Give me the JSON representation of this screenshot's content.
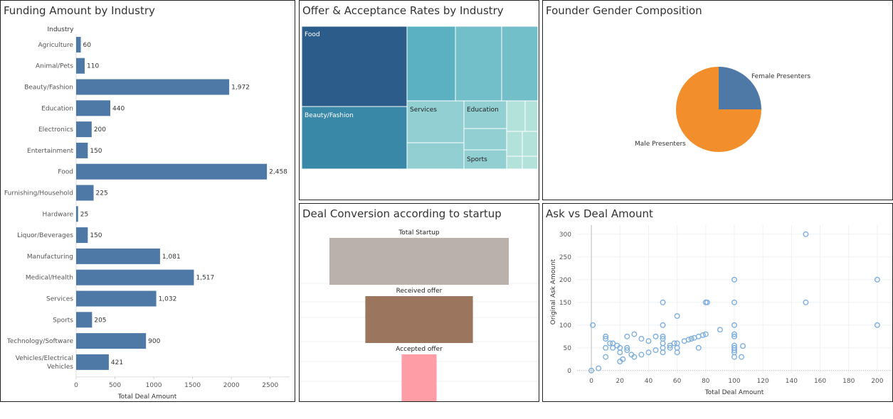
{
  "panels": {
    "funding_title": "Funding Amount by Industry",
    "offer_title": "Offer & Acceptance Rates by Industry",
    "gender_title": "Founder Gender Composition",
    "funnel_title": "Deal Conversion according to startup",
    "scatter_title": "Ask vs Deal Amount"
  },
  "colors": {
    "bar": "#4e79a7",
    "pie_female": "#4e79a7",
    "pie_male": "#f28e2b",
    "funnel": [
      "#bab0ac",
      "#9c755f",
      "#ff9da7"
    ],
    "scatter": "#7fb0dd",
    "treemap": [
      "#2c5d8a",
      "#3a88a8",
      "#5bb0c2",
      "#72bec9",
      "#91cfd2",
      "#b3e2da"
    ]
  },
  "chart_data": [
    {
      "id": "funding",
      "type": "bar",
      "orientation": "horizontal",
      "title": "Funding Amount by Industry",
      "row_header": "Industry",
      "xlabel": "Total Deal Amount",
      "ylabel": "",
      "xlim": [
        0,
        2750
      ],
      "xticks": [
        0,
        500,
        1000,
        1500,
        2000,
        2500
      ],
      "categories": [
        "Agriculture",
        "Animal/Pets",
        "Beauty/Fashion",
        "Education",
        "Electronics",
        "Entertainment",
        "Food",
        "Furnishing/Household",
        "Hardware",
        "Liquor/Beverages",
        "Manufacturing",
        "Medical/Health",
        "Services",
        "Sports",
        "Technology/Software",
        "Vehicles/Electrical Vehicles"
      ],
      "values": [
        60,
        110,
        1972,
        440,
        200,
        150,
        2458,
        225,
        25,
        150,
        1081,
        1517,
        1032,
        205,
        900,
        421
      ],
      "value_labels": [
        "60",
        "110",
        "1,972",
        "440",
        "200",
        "150",
        "2,458",
        "225",
        "25",
        "150",
        "1,081",
        "1,517",
        "1,032",
        "205",
        "900",
        "421"
      ]
    },
    {
      "id": "offer",
      "type": "treemap",
      "title": "Offer & Acceptance Rates by Industry",
      "labels": [
        "Food",
        "Beauty/Fashion",
        "Services",
        "Education",
        "Sports"
      ]
    },
    {
      "id": "gender",
      "type": "pie",
      "title": "Founder Gender Composition",
      "slices": [
        {
          "label": "Female Presenters",
          "value": 25
        },
        {
          "label": "Male Presenters",
          "value": 75
        }
      ]
    },
    {
      "id": "funnel",
      "type": "bar",
      "title": "Deal Conversion according to startup",
      "categories": [
        "Total Startup",
        "Received offer",
        "Accepted offer"
      ],
      "values": [
        100,
        60,
        19.5
      ]
    },
    {
      "id": "scatter",
      "type": "scatter",
      "title": "Ask vs Deal Amount",
      "xlabel": "Total Deal Amount",
      "ylabel": "Original Ask Amount",
      "xlim": [
        -10,
        210
      ],
      "ylim": [
        -5,
        320
      ],
      "xticks": [
        0,
        20,
        40,
        60,
        80,
        100,
        120,
        140,
        160,
        180,
        200
      ],
      "yticks": [
        0,
        50,
        100,
        150,
        200,
        250,
        300
      ],
      "points": [
        [
          0,
          0
        ],
        [
          5,
          5
        ],
        [
          1,
          100
        ],
        [
          10,
          30
        ],
        [
          10,
          50
        ],
        [
          10,
          70
        ],
        [
          10,
          75
        ],
        [
          13,
          60
        ],
        [
          15,
          50
        ],
        [
          15,
          60
        ],
        [
          18,
          55
        ],
        [
          20,
          20
        ],
        [
          20,
          40
        ],
        [
          20,
          50
        ],
        [
          22,
          25
        ],
        [
          25,
          45
        ],
        [
          25,
          50
        ],
        [
          25,
          75
        ],
        [
          28,
          35
        ],
        [
          30,
          30
        ],
        [
          30,
          80
        ],
        [
          35,
          35
        ],
        [
          35,
          70
        ],
        [
          40,
          40
        ],
        [
          40,
          65
        ],
        [
          45,
          45
        ],
        [
          45,
          75
        ],
        [
          50,
          40
        ],
        [
          50,
          50
        ],
        [
          50,
          60
        ],
        [
          50,
          70
        ],
        [
          50,
          75
        ],
        [
          50,
          100
        ],
        [
          50,
          150
        ],
        [
          55,
          50
        ],
        [
          55,
          55
        ],
        [
          58,
          60
        ],
        [
          60,
          40
        ],
        [
          60,
          50
        ],
        [
          60,
          60
        ],
        [
          60,
          120
        ],
        [
          65,
          65
        ],
        [
          68,
          68
        ],
        [
          70,
          70
        ],
        [
          72,
          72
        ],
        [
          75,
          75
        ],
        [
          75,
          50
        ],
        [
          78,
          78
        ],
        [
          80,
          80
        ],
        [
          80,
          150
        ],
        [
          81,
          150
        ],
        [
          90,
          90
        ],
        [
          100,
          30
        ],
        [
          100,
          40
        ],
        [
          100,
          45
        ],
        [
          100,
          50
        ],
        [
          100,
          55
        ],
        [
          100,
          75
        ],
        [
          100,
          80
        ],
        [
          100,
          100
        ],
        [
          100,
          150
        ],
        [
          100,
          200
        ],
        [
          105,
          30
        ],
        [
          106,
          54
        ],
        [
          150,
          150
        ],
        [
          150,
          300
        ],
        [
          200,
          100
        ],
        [
          200,
          200
        ]
      ]
    }
  ]
}
